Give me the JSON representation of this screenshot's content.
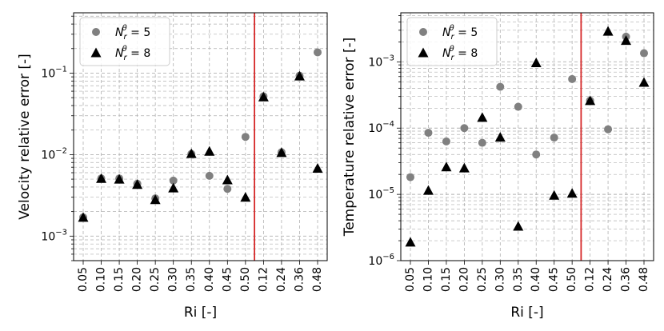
{
  "colors": {
    "circle": "#808080",
    "triangle": "#000000",
    "threshold": "#d62728",
    "grid": "#b0b0b0"
  },
  "chart_data": [
    {
      "type": "scatter",
      "xlabel": "Ri [-]",
      "ylabel": "Velocity relative error [-]",
      "yscale": "log",
      "ylim": [
        0.0005,
        0.55
      ],
      "yticks": [
        {
          "value": 0.001,
          "base": "10",
          "exp": "−3"
        },
        {
          "value": 0.01,
          "base": "10",
          "exp": "−2"
        },
        {
          "value": 0.1,
          "base": "10",
          "exp": "−1"
        }
      ],
      "categories": [
        "0.05",
        "0.10",
        "0.15",
        "0.20",
        "0.25",
        "0.30",
        "0.35",
        "0.40",
        "0.45",
        "0.50",
        "0.12",
        "0.24",
        "0.36",
        "0.48"
      ],
      "threshold_after_index": 9,
      "grid": true,
      "legend_position": "top-left",
      "series": [
        {
          "name": "N_r^θ = 5",
          "label_base": "N",
          "label_sub": "r",
          "label_sup": "θ",
          "label_value": " = 5",
          "marker": "circle",
          "values": [
            0.0017,
            0.0051,
            0.0051,
            0.0044,
            0.0029,
            0.0048,
            0.0102,
            0.0055,
            0.0038,
            0.0165,
            0.052,
            0.0107,
            0.093,
            0.18
          ]
        },
        {
          "name": "N_r^θ = 8",
          "label_base": "N",
          "label_sub": "r",
          "label_sup": "θ",
          "label_value": " = 8",
          "marker": "triangle",
          "values": [
            0.0017,
            0.0051,
            0.005,
            0.0043,
            0.0028,
            0.0039,
            0.0103,
            0.011,
            0.0049,
            0.003,
            0.051,
            0.0106,
            0.092,
            0.0068
          ]
        }
      ]
    },
    {
      "type": "scatter",
      "xlabel": "Ri [-]",
      "ylabel": "Temperature relative error [-]",
      "yscale": "log",
      "ylim": [
        1e-06,
        0.0055
      ],
      "yticks": [
        {
          "value": 1e-06,
          "base": "10",
          "exp": "−6"
        },
        {
          "value": 1e-05,
          "base": "10",
          "exp": "−5"
        },
        {
          "value": 0.0001,
          "base": "10",
          "exp": "−4"
        },
        {
          "value": 0.001,
          "base": "10",
          "exp": "−3"
        }
      ],
      "categories": [
        "0.05",
        "0.10",
        "0.15",
        "0.20",
        "0.25",
        "0.30",
        "0.35",
        "0.40",
        "0.45",
        "0.50",
        "0.12",
        "0.24",
        "0.36",
        "0.48"
      ],
      "threshold_after_index": 9,
      "grid": true,
      "legend_position": "top-left",
      "series": [
        {
          "name": "N_r^θ = 5",
          "label_base": "N",
          "label_sub": "r",
          "label_sup": "θ",
          "label_value": " = 5",
          "marker": "circle",
          "values": [
            1.82e-05,
            8.5e-05,
            6.3e-05,
            0.0001,
            6e-05,
            0.00042,
            0.00021,
            4e-05,
            7.2e-05,
            0.00055,
            0.00026,
            9.6e-05,
            0.0024,
            0.00135
          ]
        },
        {
          "name": "N_r^θ = 8",
          "label_base": "N",
          "label_sub": "r",
          "label_sup": "θ",
          "label_value": " = 8",
          "marker": "triangle",
          "values": [
            1.9e-06,
            1.15e-05,
            2.6e-05,
            2.5e-05,
            0.000145,
            7.3e-05,
            3.3e-06,
            0.00097,
            9.7e-06,
            1.04e-05,
            0.00026,
            0.0029,
            0.0021,
            0.00049
          ]
        }
      ]
    }
  ]
}
